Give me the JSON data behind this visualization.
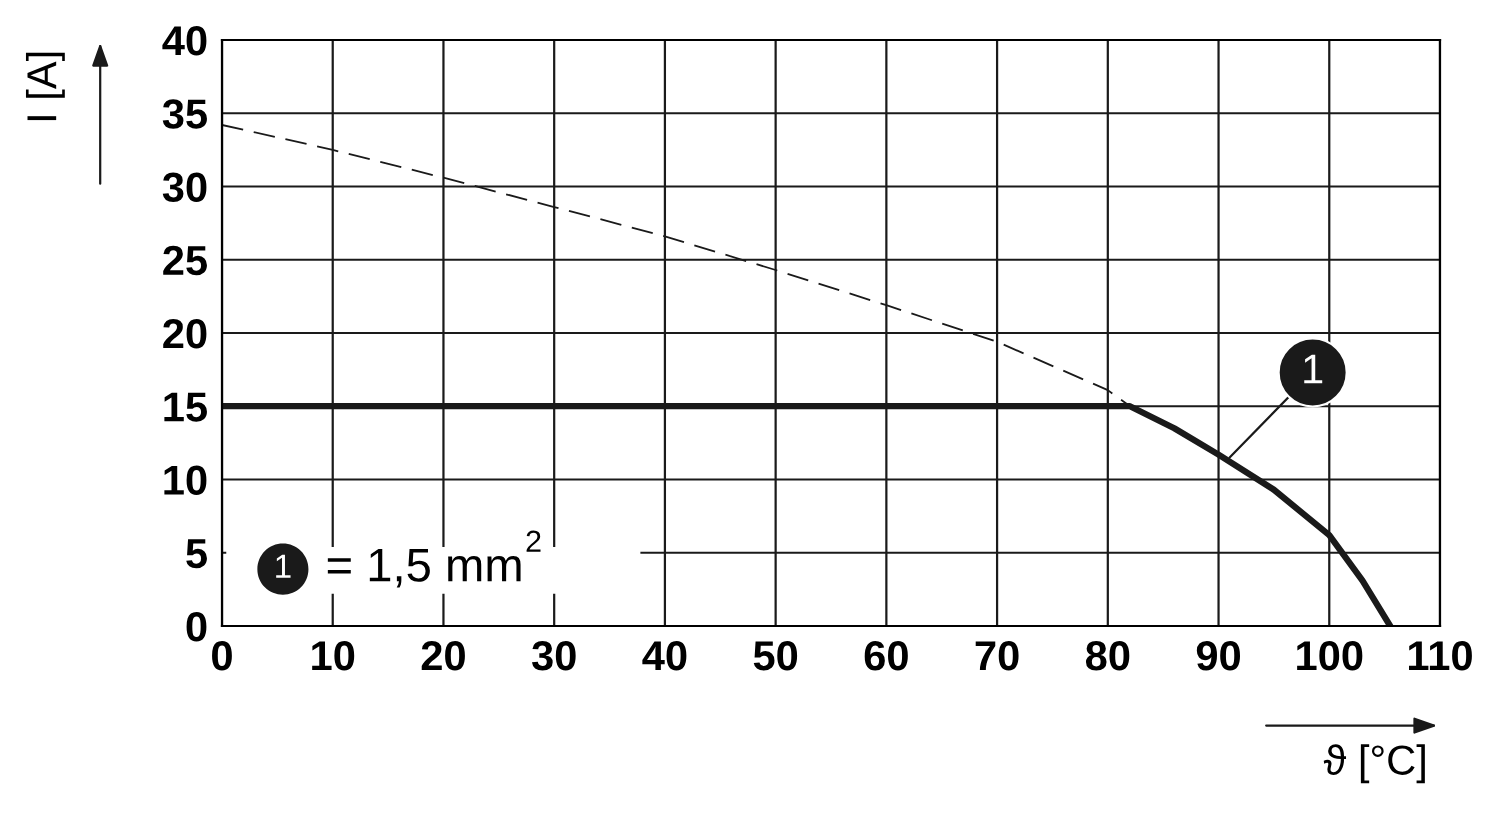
{
  "chart_data": {
    "type": "line",
    "xlabel": "ϑ [°C]",
    "ylabel": "I [A]",
    "xlim": [
      0,
      110
    ],
    "xticks": [
      0,
      10,
      20,
      30,
      40,
      50,
      60,
      70,
      80,
      90,
      100,
      110
    ],
    "ylim": [
      0,
      40
    ],
    "yticks": [
      0,
      5,
      10,
      15,
      20,
      25,
      30,
      35,
      40
    ],
    "grid": true,
    "marker": "none",
    "series": [
      {
        "color": "#1a1a1a",
        "line_style": "dashed",
        "x": [
          0,
          10,
          20,
          30,
          40,
          50,
          60,
          70,
          80,
          82
        ],
        "values": [
          34.2,
          32.5,
          30.6,
          28.6,
          26.6,
          24.3,
          21.9,
          19.4,
          16.1,
          15
        ]
      },
      {
        "color": "#1a1a1a",
        "line_style": "solid",
        "x": [
          0,
          82,
          86,
          90,
          95,
          100,
          103,
          105.5
        ],
        "values": [
          15,
          15,
          13.5,
          11.7,
          9.3,
          6.2,
          3.1,
          0
        ]
      }
    ],
    "annotations": [
      {
        "text": "1",
        "x": 91,
        "y": 11.5
      },
      "1 = 1,5 mm$^{2}$"
    ]
  }
}
